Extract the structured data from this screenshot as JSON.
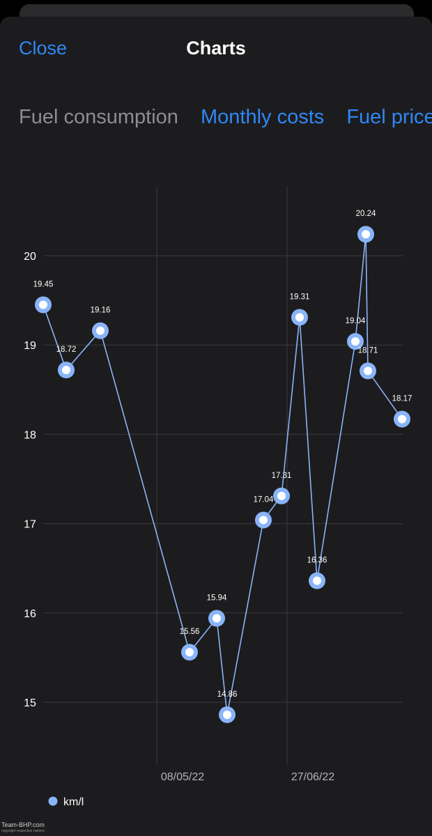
{
  "header": {
    "close_label": "Close",
    "title": "Charts"
  },
  "tabs": [
    {
      "label": "Fuel consumption",
      "state": "selected"
    },
    {
      "label": "Monthly costs",
      "state": "link"
    },
    {
      "label": "Fuel price",
      "state": "link"
    }
  ],
  "chart_data": {
    "type": "line",
    "ylim": [
      14.3,
      20.8
    ],
    "yticks": [
      15,
      16,
      17,
      18,
      19,
      20
    ],
    "xtick_labels": [
      "08/05/22",
      "27/06/22"
    ],
    "grid": true,
    "legend_position": "bottom-left",
    "series": [
      {
        "name": "km/l",
        "color": "#8ab4f8",
        "points": [
          {
            "label": "19.45",
            "y": 19.45
          },
          {
            "label": "18.72",
            "y": 18.72
          },
          {
            "label": "19.16",
            "y": 19.16
          },
          {
            "label": "15.56",
            "y": 15.56
          },
          {
            "label": "15.94",
            "y": 15.94
          },
          {
            "label": "14.86",
            "y": 14.86
          },
          {
            "label": "17.04",
            "y": 17.04
          },
          {
            "label": "17.31",
            "y": 17.31
          },
          {
            "label": "19.31",
            "y": 19.31
          },
          {
            "label": "16.36",
            "y": 16.36
          },
          {
            "label": "19.04",
            "y": 19.04
          },
          {
            "label": "20.24",
            "y": 20.24
          },
          {
            "label": "18.71",
            "y": 18.71
          },
          {
            "label": "18.17",
            "y": 18.17
          }
        ]
      }
    ]
  },
  "watermark": {
    "brand": "Team-BHP.com",
    "note": "copyright respective owners"
  }
}
